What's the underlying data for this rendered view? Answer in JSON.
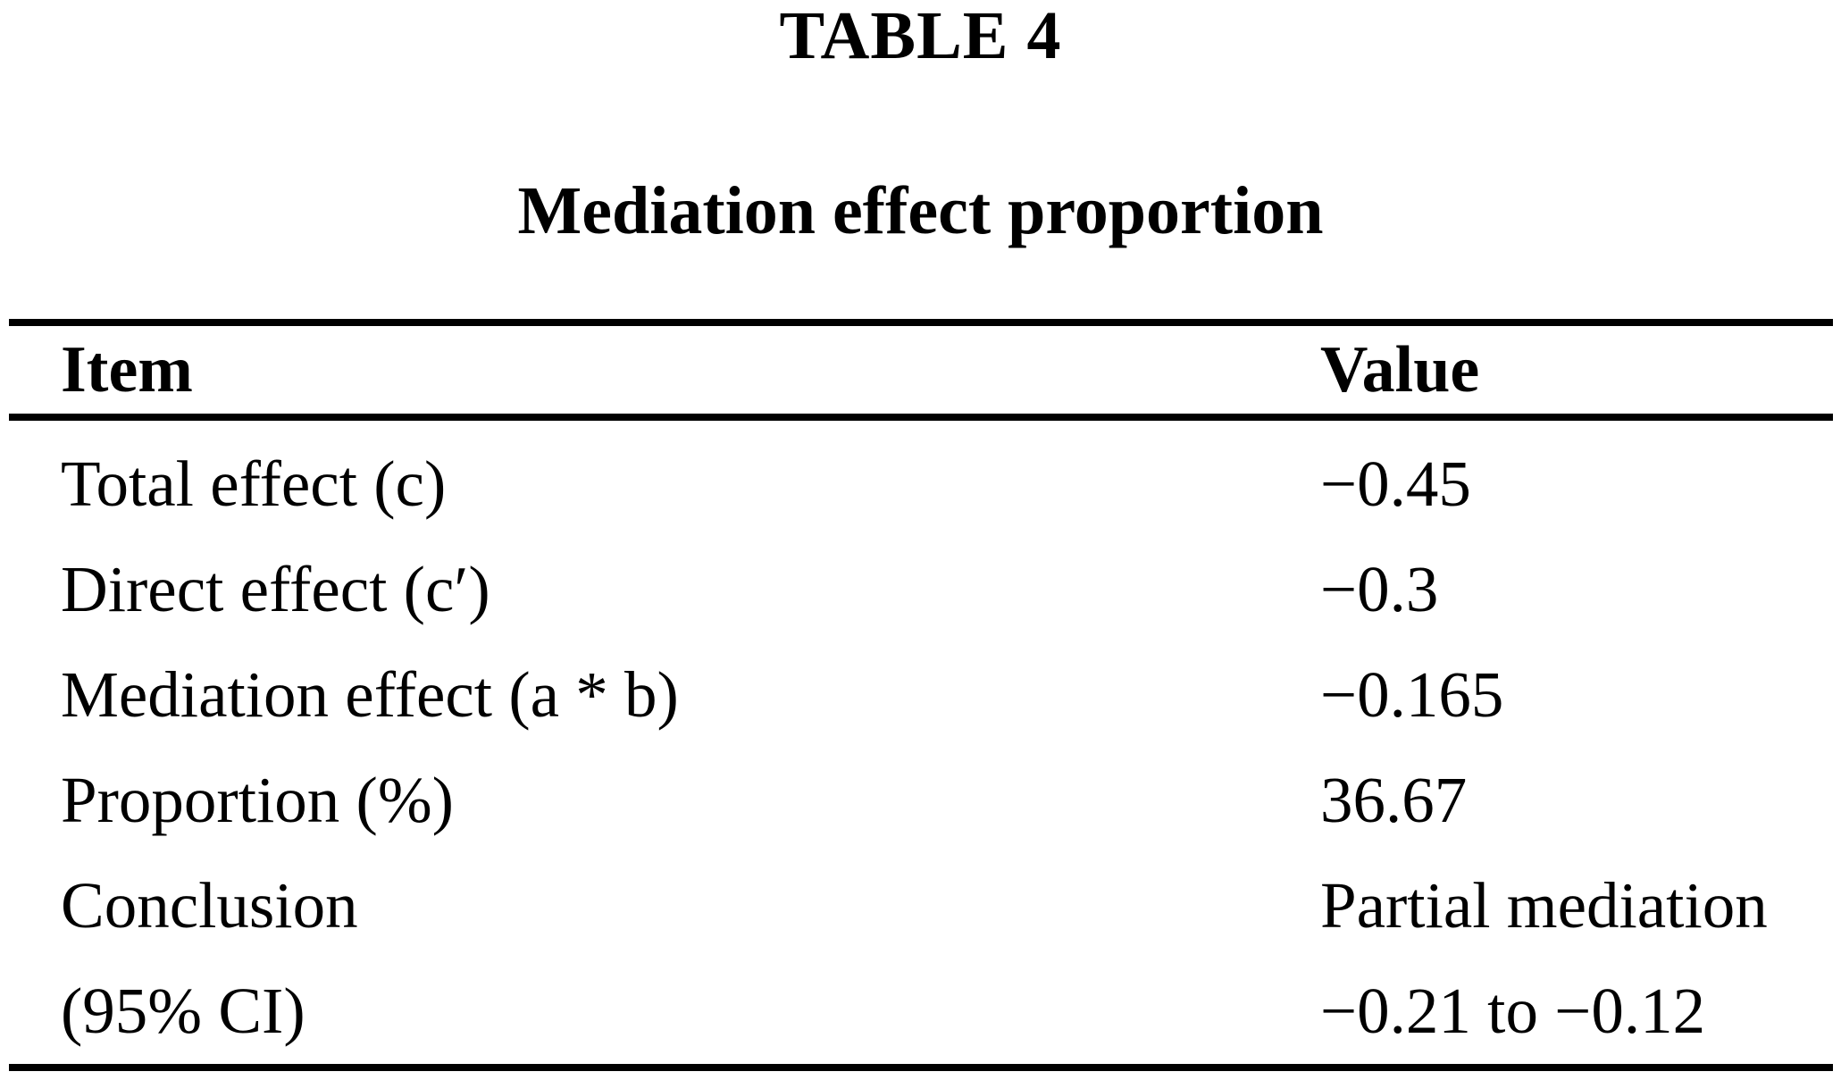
{
  "page": {
    "title": "TABLE 4",
    "subtitle": "Mediation effect proportion"
  },
  "table": {
    "columns": [
      {
        "label": "Item"
      },
      {
        "label": "Value"
      }
    ],
    "rows": [
      {
        "item": "Total effect (c)",
        "value": "−0.45"
      },
      {
        "item": "Direct effect (c′)",
        "value": "−0.3"
      },
      {
        "item": "Mediation effect (a * b)",
        "value": "−0.165"
      },
      {
        "item": "Proportion (%)",
        "value": "36.67"
      },
      {
        "item": "Conclusion",
        "value": "Partial mediation"
      },
      {
        "item": "(95% CI)",
        "value": "−0.21 to −0.12"
      }
    ]
  },
  "colors": {
    "text": "#000000",
    "background": "#ffffff",
    "rule": "#000000"
  }
}
